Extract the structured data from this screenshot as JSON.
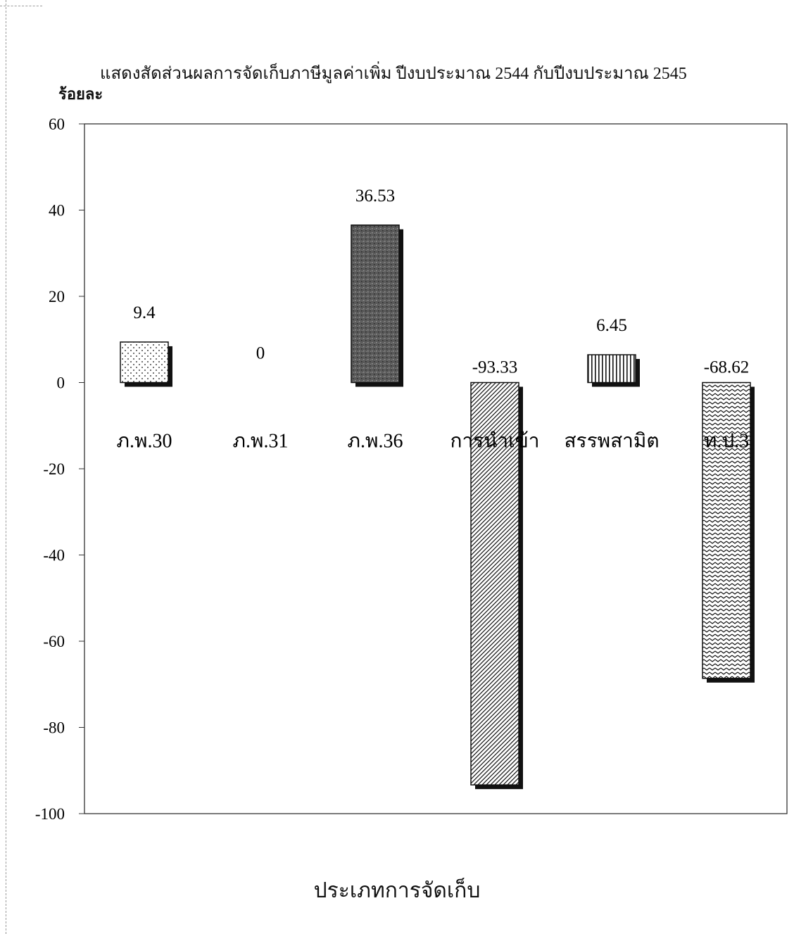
{
  "chart_data": {
    "type": "bar",
    "title": "แสดงสัดส่วนผลการจัดเก็บภาษีมูลค่าเพิ่ม ปีงบประมาณ 2544 กับปีงบประมาณ 2545",
    "ylabel": "ร้อยละ",
    "xlabel": "ประเภทการจัดเก็บ",
    "categories": [
      "ภ.พ.30",
      "ภ.พ.31",
      "ภ.พ.36",
      "การนำเข้า",
      "สรรพสามิต",
      "ท.ป.3"
    ],
    "values": [
      9.4,
      0,
      36.53,
      -93.33,
      6.45,
      -68.62
    ],
    "data_labels": [
      "9.4",
      "0",
      "36.53",
      "-93.33",
      "6.45",
      "-68.62"
    ],
    "patterns": [
      "dots",
      "none",
      "dark-grain",
      "diagonal-hatch",
      "vertical-stripes",
      "zigzag"
    ],
    "ylim": [
      -100,
      60
    ],
    "yticks": [
      "60",
      "40",
      "20",
      "0",
      "-20",
      "-40",
      "-60",
      "-80",
      "-100"
    ],
    "grid": false,
    "legend": "none",
    "colors": {
      "bar_outline": "#111111",
      "shadow": "#111111",
      "dark_fill": "#555555"
    }
  }
}
